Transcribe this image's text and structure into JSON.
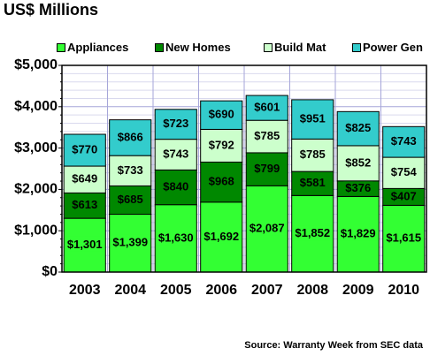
{
  "chart_data": {
    "type": "bar",
    "stacked": true,
    "title": "US$ Millions",
    "categories": [
      "2003",
      "2004",
      "2005",
      "2006",
      "2007",
      "2008",
      "2009",
      "2010"
    ],
    "series": [
      {
        "name": "Appliances",
        "color": "#33ff33",
        "values": [
          1301,
          1399,
          1630,
          1692,
          2087,
          1852,
          1829,
          1615
        ]
      },
      {
        "name": "New Homes",
        "color": "#008800",
        "values": [
          613,
          685,
          840,
          968,
          799,
          581,
          376,
          407
        ]
      },
      {
        "name": "Build Mat",
        "color": "#ccffcc",
        "values": [
          649,
          733,
          743,
          792,
          785,
          785,
          852,
          754
        ]
      },
      {
        "name": "Power Gen",
        "color": "#33cccc",
        "values": [
          770,
          866,
          723,
          690,
          601,
          951,
          825,
          743
        ]
      }
    ],
    "data_labels": [
      [
        "$1,301",
        "$1,399",
        "$1,630",
        "$1,692",
        "$2,087",
        "$1,852",
        "$1,829",
        "$1,615"
      ],
      [
        "$613",
        "$685",
        "$840",
        "$968",
        "$799",
        "$581",
        "$376",
        "$407"
      ],
      [
        "$649",
        "$733",
        "$743",
        "$792",
        "$785",
        "$785",
        "$852",
        "$754"
      ],
      [
        "$770",
        "$866",
        "$723",
        "$690",
        "$601",
        "$951",
        "$825",
        "$743"
      ]
    ],
    "y_ticks": [
      0,
      1000,
      2000,
      3000,
      4000,
      5000
    ],
    "y_tick_labels": [
      "$0",
      "$1,000",
      "$2,000",
      "$3,000",
      "$4,000",
      "$5,000"
    ],
    "ylim": [
      0,
      5000
    ],
    "legend_position": "top",
    "grid": true,
    "source": "Source: Warranty Week from SEC data"
  }
}
